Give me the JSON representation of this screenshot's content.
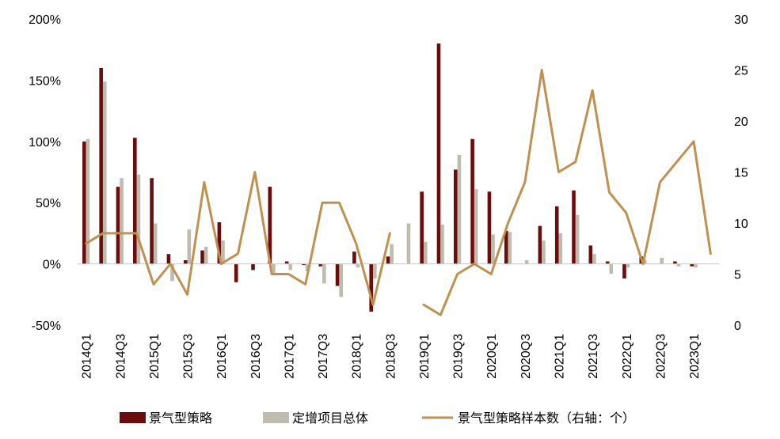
{
  "chart_data": {
    "type": "bar",
    "categories": [
      "2014Q1",
      "2014Q2",
      "2014Q3",
      "2014Q4",
      "2015Q1",
      "2015Q2",
      "2015Q3",
      "2015Q4",
      "2016Q1",
      "2016Q2",
      "2016Q3",
      "2016Q4",
      "2017Q1",
      "2017Q2",
      "2017Q3",
      "2017Q4",
      "2018Q1",
      "2018Q2",
      "2018Q3",
      "2018Q4",
      "2019Q1",
      "2019Q2",
      "2019Q3",
      "2019Q4",
      "2020Q1",
      "2020Q2",
      "2020Q3",
      "2020Q4",
      "2021Q1",
      "2021Q2",
      "2021Q3",
      "2021Q4",
      "2022Q1",
      "2022Q2",
      "2022Q3",
      "2022Q4",
      "2023Q1",
      "2023Q2"
    ],
    "x_tick_labels": [
      "2014Q1",
      "2014Q3",
      "2015Q1",
      "2015Q3",
      "2016Q1",
      "2016Q3",
      "2017Q1",
      "2017Q3",
      "2018Q1",
      "2018Q3",
      "2019Q1",
      "2019Q3",
      "2020Q1",
      "2020Q3",
      "2021Q1",
      "2021Q3",
      "2022Q1",
      "2022Q3",
      "2023Q1"
    ],
    "series": [
      {
        "name": "景气型策略",
        "type": "bar",
        "axis": "left",
        "color": "#6b0d0d",
        "values": [
          100,
          160,
          63,
          103,
          70,
          8,
          3,
          11,
          34,
          -15,
          -5,
          63,
          2,
          -1,
          -2,
          -18,
          10,
          -39,
          6,
          null,
          59,
          180,
          77,
          102,
          59,
          27,
          null,
          31,
          47,
          60,
          15,
          2,
          -12,
          6,
          null,
          2,
          -2,
          null
        ]
      },
      {
        "name": "定增项目总体",
        "type": "bar",
        "axis": "left",
        "color": "#bdbcae",
        "values": [
          102,
          149,
          70,
          73,
          33,
          -14,
          28,
          14,
          19,
          null,
          null,
          -8,
          -5,
          -6,
          -16,
          -27,
          -3,
          -12,
          16,
          33,
          18,
          32,
          89,
          61,
          24,
          26,
          3,
          19,
          25,
          40,
          8,
          -8,
          -3,
          3,
          5,
          -2,
          -3,
          null
        ]
      },
      {
        "name": "景气型策略样本数（右轴：个）",
        "type": "line",
        "axis": "right",
        "color": "#bf9150",
        "values": [
          8,
          9,
          9,
          9,
          4,
          6,
          3,
          14,
          6,
          7,
          15,
          5,
          5,
          4,
          12,
          12,
          8,
          2,
          9,
          null,
          2,
          1,
          5,
          6,
          5,
          10,
          14,
          25,
          15,
          16,
          23,
          13,
          11,
          6,
          14,
          16,
          18,
          7
        ]
      }
    ],
    "y_left": {
      "min": -50,
      "max": 200,
      "ticks": [
        "-50%",
        "0%",
        "50%",
        "100%",
        "150%",
        "200%"
      ]
    },
    "y_right": {
      "min": 0,
      "max": 30,
      "ticks": [
        "0",
        "5",
        "10",
        "15",
        "20",
        "25",
        "30"
      ]
    },
    "legend": {
      "position": "bottom"
    },
    "grid": false
  }
}
